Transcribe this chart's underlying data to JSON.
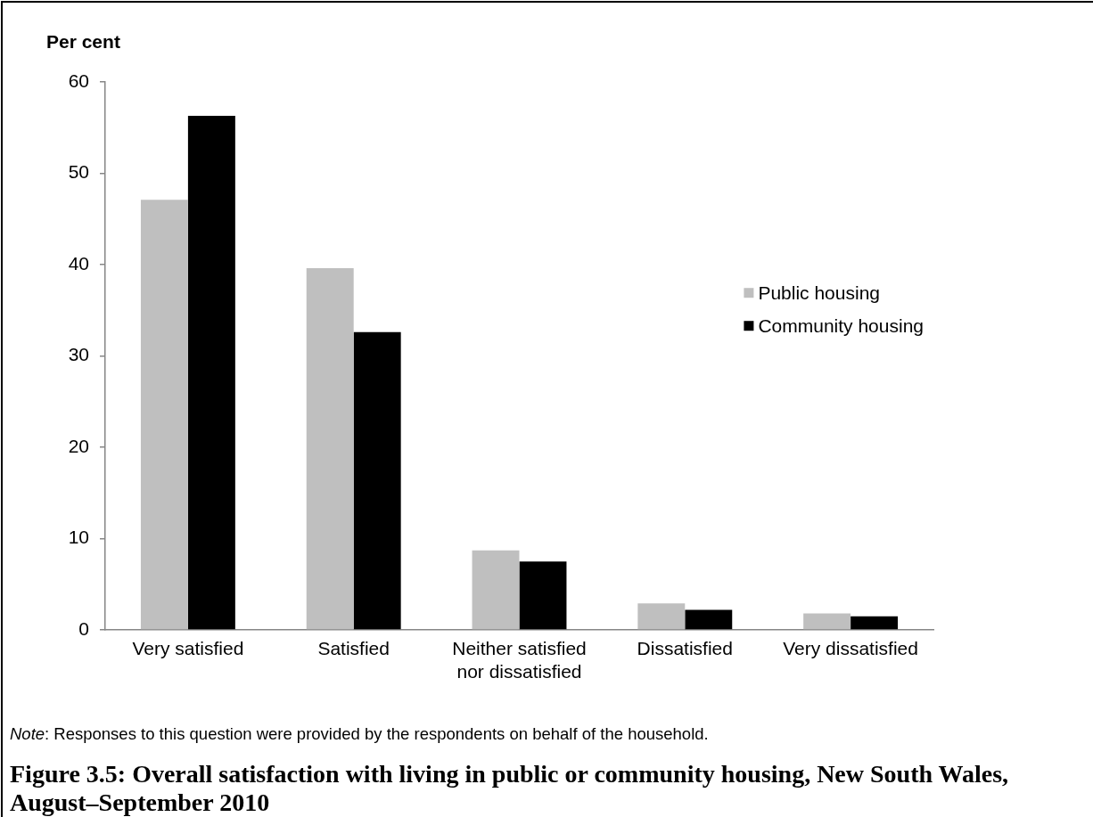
{
  "chart_data": {
    "type": "bar",
    "title": "Figure 3.5: Overall satisfaction with living in public or community housing, New South Wales, August–September 2010",
    "ylabel": "Per cent",
    "annotations": [
      "Note: Responses to this question were provided by the respondents on behalf of the household."
    ],
    "categories": [
      "Very satisfied",
      "Satisfied",
      "Neither satisfied nor dissatisfied",
      "Dissatisfied",
      "Very dissatisfied"
    ],
    "series": [
      {
        "name": "Public housing",
        "color": "#bfbfbf",
        "values": [
          47.1,
          39.6,
          8.7,
          2.9,
          1.8
        ]
      },
      {
        "name": "Community housing",
        "color": "#000000",
        "values": [
          56.3,
          32.6,
          7.5,
          2.2,
          1.5
        ]
      }
    ],
    "ylim": [
      0,
      60
    ],
    "yticks": [
      0,
      10,
      20,
      30,
      40,
      50,
      60
    ],
    "legend": "right"
  }
}
